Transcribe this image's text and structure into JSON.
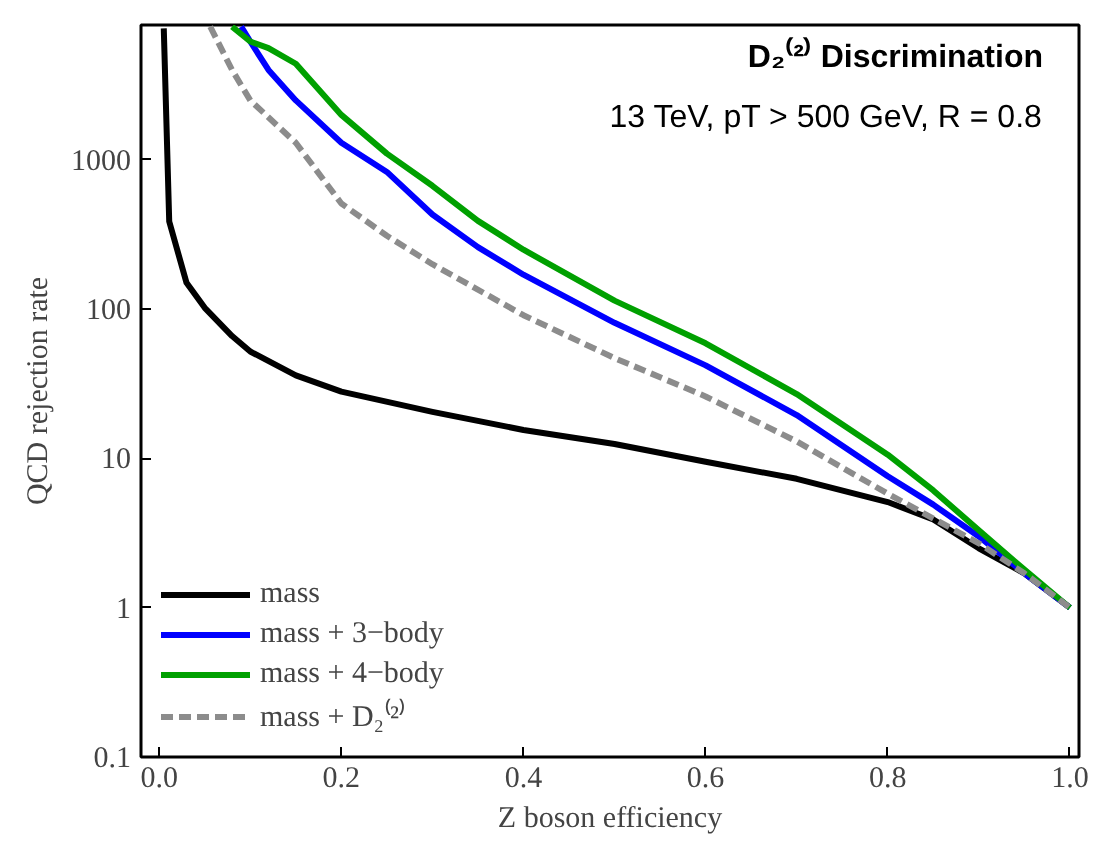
{
  "chart_data": {
    "type": "line",
    "xlabel": "Z boson efficiency",
    "ylabel": "QCD rejection rate",
    "log": "y",
    "xlim": [
      -0.02,
      1.01
    ],
    "ylim": [
      0.1,
      8000
    ],
    "xticks": [
      {
        "value": 0,
        "label": "0.0"
      },
      0.2,
      0.4,
      0.6,
      0.8,
      {
        "value": 1,
        "label": "1.0"
      }
    ],
    "yticks": [
      0.1,
      1,
      10,
      100,
      1000
    ],
    "grid": false,
    "legend": "bottom left",
    "marker": "none",
    "annotations": [
      "D₂⁽²⁾ Discrimination",
      "13 TeV, pT > 500 GeV, R = 0.8"
    ],
    "series": [
      {
        "name": "mass",
        "color": "#000000",
        "line_style": "solid",
        "x": [
          0.005,
          0.011,
          0.03,
          0.05,
          0.08,
          0.1,
          0.15,
          0.2,
          0.3,
          0.4,
          0.5,
          0.6,
          0.7,
          0.8,
          0.85,
          0.9,
          0.95,
          1.0
        ],
        "values": [
          7600,
          386,
          150,
          102,
          66,
          52,
          36,
          28,
          20.5,
          15.5,
          12.5,
          9.5,
          7.3,
          5.1,
          3.9,
          2.5,
          1.7,
          1
        ]
      },
      {
        "name": "mass + 3−body",
        "color": "#0000ff",
        "line_style": "solid",
        "x": [
          0.09,
          0.1,
          0.12,
          0.15,
          0.2,
          0.25,
          0.3,
          0.35,
          0.4,
          0.5,
          0.6,
          0.7,
          0.8,
          0.85,
          0.9,
          0.95,
          1.0
        ],
        "values": [
          7800,
          6200,
          4000,
          2500,
          1300,
          830,
          430,
          260,
          170,
          81,
          42,
          19.5,
          7.6,
          4.9,
          3.0,
          1.7,
          1
        ]
      },
      {
        "name": "mass + 4−body",
        "color": "#00a000",
        "line_style": "solid",
        "x": [
          0.08,
          0.1,
          0.12,
          0.15,
          0.2,
          0.25,
          0.3,
          0.35,
          0.4,
          0.5,
          0.6,
          0.7,
          0.8,
          0.85,
          0.9,
          0.95,
          1.0
        ],
        "values": [
          7800,
          6200,
          5600,
          4400,
          2000,
          1100,
          670,
          390,
          250,
          114,
          59,
          27,
          10.6,
          6.1,
          3.3,
          1.8,
          1
        ]
      },
      {
        "name": "mass + D₂⁽²⁾",
        "color": "#8c8c8c",
        "line_style": "dashed",
        "x": [
          0.056,
          0.08,
          0.1,
          0.15,
          0.2,
          0.25,
          0.3,
          0.4,
          0.5,
          0.6,
          0.7,
          0.8,
          0.9,
          0.95,
          1.0
        ],
        "values": [
          7800,
          4000,
          2500,
          1300,
          510,
          310,
          200,
          91,
          47,
          26,
          13,
          5.8,
          2.7,
          1.7,
          1
        ]
      }
    ]
  }
}
